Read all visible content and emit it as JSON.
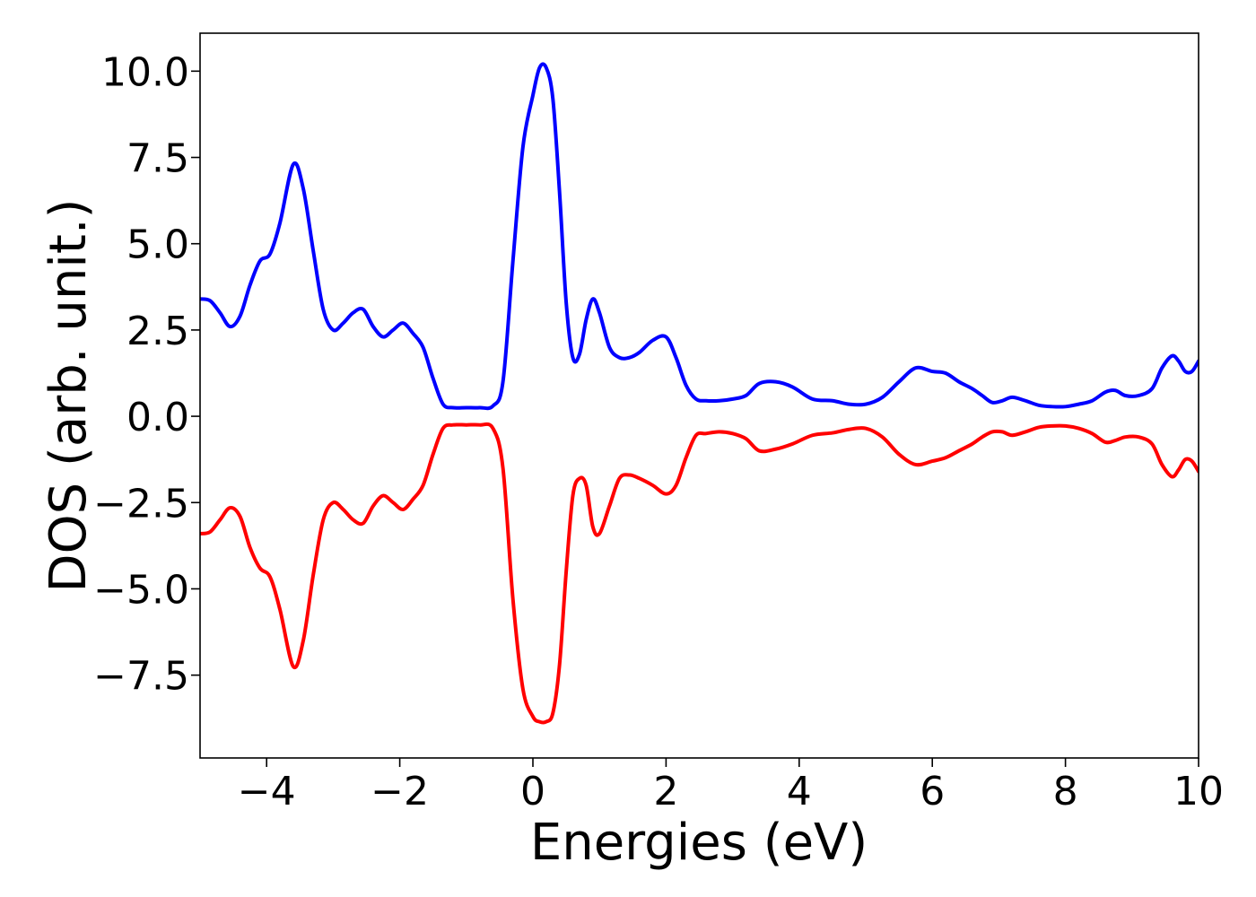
{
  "chart_data": {
    "type": "line",
    "title": "",
    "xlabel": "Energies (eV)",
    "ylabel": "DOS (arb. unit.)",
    "xlim": [
      -5,
      10
    ],
    "ylim": [
      -9.9,
      11.1
    ],
    "xticks": [
      -4,
      -2,
      0,
      2,
      4,
      6,
      8,
      10
    ],
    "xtick_labels": [
      "−4",
      "−2",
      "0",
      "2",
      "4",
      "6",
      "8",
      "10"
    ],
    "yticks": [
      -7.5,
      -5.0,
      -2.5,
      0.0,
      2.5,
      5.0,
      7.5,
      10.0
    ],
    "ytick_labels": [
      "−7.5",
      "−5.0",
      "−2.5",
      "0.0",
      "2.5",
      "5.0",
      "7.5",
      "10.0"
    ],
    "grid": false,
    "legend": "none",
    "series": [
      {
        "color": "#0000ff",
        "x": [
          -5.0,
          -4.85,
          -4.7,
          -4.55,
          -4.4,
          -4.25,
          -4.1,
          -3.95,
          -3.8,
          -3.6,
          -3.45,
          -3.3,
          -3.15,
          -3.0,
          -2.85,
          -2.7,
          -2.55,
          -2.4,
          -2.25,
          -2.1,
          -1.95,
          -1.8,
          -1.65,
          -1.5,
          -1.35,
          -1.2,
          -1.0,
          -0.8,
          -0.6,
          -0.45,
          -0.3,
          -0.15,
          0.0,
          0.1,
          0.2,
          0.3,
          0.4,
          0.5,
          0.6,
          0.7,
          0.8,
          0.9,
          1.0,
          1.15,
          1.3,
          1.45,
          1.6,
          1.8,
          2.0,
          2.15,
          2.3,
          2.45,
          2.6,
          2.8,
          3.0,
          3.2,
          3.4,
          3.65,
          3.9,
          4.2,
          4.5,
          4.75,
          5.0,
          5.25,
          5.5,
          5.75,
          6.0,
          6.2,
          6.4,
          6.6,
          6.75,
          6.9,
          7.05,
          7.2,
          7.4,
          7.6,
          7.8,
          8.0,
          8.2,
          8.4,
          8.6,
          8.75,
          8.9,
          9.1,
          9.3,
          9.45,
          9.6,
          9.7,
          9.8,
          9.9,
          10.0
        ],
        "values": [
          3.4,
          3.35,
          3.0,
          2.6,
          2.9,
          3.8,
          4.5,
          4.7,
          5.6,
          7.3,
          6.6,
          4.8,
          3.1,
          2.5,
          2.7,
          3.0,
          3.1,
          2.6,
          2.3,
          2.5,
          2.7,
          2.4,
          2.0,
          1.1,
          0.35,
          0.25,
          0.25,
          0.25,
          0.3,
          1.0,
          4.5,
          7.8,
          9.3,
          10.1,
          10.1,
          9.2,
          6.5,
          3.3,
          1.7,
          1.8,
          2.8,
          3.4,
          3.0,
          2.0,
          1.7,
          1.7,
          1.85,
          2.2,
          2.3,
          1.7,
          0.9,
          0.5,
          0.45,
          0.45,
          0.5,
          0.6,
          0.95,
          1.0,
          0.85,
          0.5,
          0.45,
          0.35,
          0.35,
          0.55,
          1.0,
          1.4,
          1.3,
          1.25,
          1.0,
          0.8,
          0.6,
          0.4,
          0.45,
          0.55,
          0.45,
          0.32,
          0.28,
          0.28,
          0.35,
          0.45,
          0.7,
          0.75,
          0.6,
          0.6,
          0.8,
          1.4,
          1.75,
          1.6,
          1.3,
          1.3,
          1.6
        ]
      },
      {
        "color": "#ff0000",
        "x": [
          -5.0,
          -4.85,
          -4.7,
          -4.55,
          -4.4,
          -4.25,
          -4.1,
          -3.95,
          -3.8,
          -3.6,
          -3.45,
          -3.3,
          -3.15,
          -3.0,
          -2.85,
          -2.7,
          -2.55,
          -2.4,
          -2.25,
          -2.1,
          -1.95,
          -1.8,
          -1.65,
          -1.5,
          -1.35,
          -1.2,
          -1.0,
          -0.8,
          -0.6,
          -0.45,
          -0.3,
          -0.15,
          0.0,
          0.1,
          0.2,
          0.3,
          0.4,
          0.5,
          0.6,
          0.7,
          0.8,
          0.9,
          1.0,
          1.15,
          1.3,
          1.45,
          1.6,
          1.8,
          2.0,
          2.15,
          2.3,
          2.45,
          2.6,
          2.8,
          3.0,
          3.2,
          3.4,
          3.65,
          3.9,
          4.2,
          4.5,
          4.75,
          5.0,
          5.25,
          5.5,
          5.75,
          6.0,
          6.2,
          6.4,
          6.6,
          6.75,
          6.9,
          7.05,
          7.2,
          7.4,
          7.6,
          7.8,
          8.0,
          8.2,
          8.4,
          8.6,
          8.75,
          8.9,
          9.1,
          9.3,
          9.45,
          9.6,
          9.7,
          9.8,
          9.9,
          10.0
        ],
        "values": [
          -3.4,
          -3.35,
          -3.0,
          -2.65,
          -2.9,
          -3.8,
          -4.4,
          -4.65,
          -5.6,
          -7.25,
          -6.5,
          -4.6,
          -3.0,
          -2.5,
          -2.7,
          -3.0,
          -3.1,
          -2.6,
          -2.3,
          -2.5,
          -2.7,
          -2.4,
          -2.0,
          -1.1,
          -0.35,
          -0.25,
          -0.25,
          -0.25,
          -0.35,
          -1.5,
          -5.3,
          -7.9,
          -8.7,
          -8.85,
          -8.85,
          -8.6,
          -7.2,
          -4.5,
          -2.3,
          -1.8,
          -2.0,
          -3.2,
          -3.4,
          -2.6,
          -1.8,
          -1.7,
          -1.8,
          -2.0,
          -2.25,
          -2.0,
          -1.2,
          -0.55,
          -0.5,
          -0.45,
          -0.5,
          -0.65,
          -1.0,
          -0.95,
          -0.8,
          -0.55,
          -0.48,
          -0.38,
          -0.35,
          -0.6,
          -1.1,
          -1.4,
          -1.3,
          -1.2,
          -1.0,
          -0.8,
          -0.6,
          -0.45,
          -0.45,
          -0.55,
          -0.45,
          -0.32,
          -0.28,
          -0.28,
          -0.35,
          -0.5,
          -0.75,
          -0.7,
          -0.6,
          -0.6,
          -0.8,
          -1.4,
          -1.75,
          -1.55,
          -1.25,
          -1.3,
          -1.6
        ]
      }
    ]
  }
}
